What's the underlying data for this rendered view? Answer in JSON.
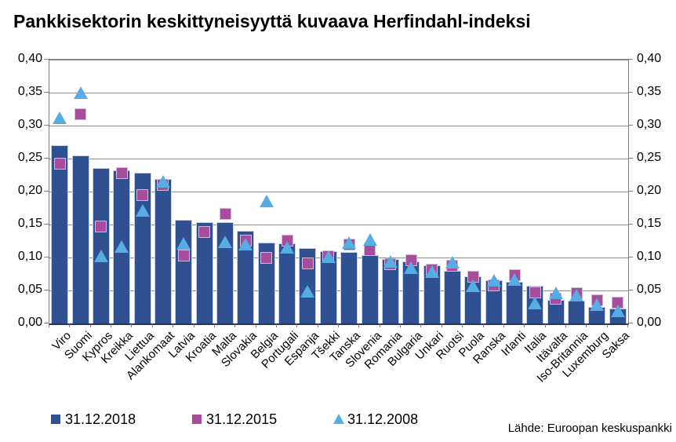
{
  "title": "Pankkisektorin keskittyneisyyttä kuvaava Herfindahl-indeksi",
  "source": "Lähde: Euroopan keskuspankki",
  "colors": {
    "bar_2018": "#2f5191",
    "square_2015": "#a84c9c",
    "triangle_2008": "#56ade4",
    "gridline": "#8c8c8c",
    "frame": "#7f7f7f"
  },
  "legend": [
    {
      "label": "31.12.2018",
      "marker": "square",
      "color": "#2f5191"
    },
    {
      "label": "31.12.2015",
      "marker": "square",
      "color": "#a84c9c"
    },
    {
      "label": "31.12.2008",
      "marker": "triangle",
      "color": "#56ade4"
    }
  ],
  "chart_data": {
    "type": "bar",
    "title": "Pankkisektorin keskittyneisyyttä kuvaava Herfindahl-indeksi",
    "grid": true,
    "legend_position": "bottom",
    "ylim": [
      0,
      0.4
    ],
    "ytick_step": 0.05,
    "y_tick_labels": [
      "0,40",
      "0,35",
      "0,30",
      "0,25",
      "0,20",
      "0,15",
      "0,10",
      "0,05",
      "0,00"
    ],
    "categories": [
      "Viro",
      "Suomi",
      "Kypros",
      "Kreikka",
      "Liettua",
      "Alankomaat",
      "Latvia",
      "Kroatia",
      "Malta",
      "Slovakia",
      "Belgia",
      "Portugali",
      "Espanja",
      "Tšekki",
      "Tanska",
      "Slovenia",
      "Romania",
      "Bulgaria",
      "Unkari",
      "Ruotsi",
      "Puola",
      "Ranska",
      "Irlanti",
      "Italia",
      "Itävalta",
      "Iso-Britannia",
      "Luxemburg",
      "Saksa"
    ],
    "series": [
      {
        "name": "31.12.2018",
        "marker": "bar",
        "values": [
          0.27,
          0.255,
          0.236,
          0.232,
          0.228,
          0.219,
          0.157,
          0.154,
          0.153,
          0.14,
          0.123,
          0.121,
          0.114,
          0.11,
          0.108,
          0.103,
          0.098,
          0.094,
          0.088,
          0.08,
          0.072,
          0.066,
          0.063,
          0.057,
          0.036,
          0.034,
          0.025,
          0.023
        ]
      },
      {
        "name": "31.12.2015",
        "marker": "square",
        "values": [
          0.242,
          0.317,
          0.147,
          0.228,
          0.195,
          0.21,
          0.103,
          0.139,
          0.166,
          0.126,
          0.099,
          0.126,
          0.091,
          0.102,
          0.12,
          0.111,
          0.09,
          0.096,
          0.082,
          0.087,
          0.071,
          0.058,
          0.073,
          0.047,
          0.038,
          0.046,
          0.035,
          0.031
        ]
      },
      {
        "name": "31.12.2008",
        "marker": "triangle",
        "values": [
          0.312,
          0.35,
          0.102,
          0.117,
          0.171,
          0.216,
          0.121,
          null,
          0.124,
          0.12,
          0.186,
          0.115,
          0.049,
          0.101,
          0.123,
          0.127,
          0.094,
          0.085,
          0.079,
          0.093,
          0.057,
          0.066,
          0.067,
          0.031,
          0.046,
          0.043,
          0.028,
          0.019
        ]
      }
    ]
  }
}
